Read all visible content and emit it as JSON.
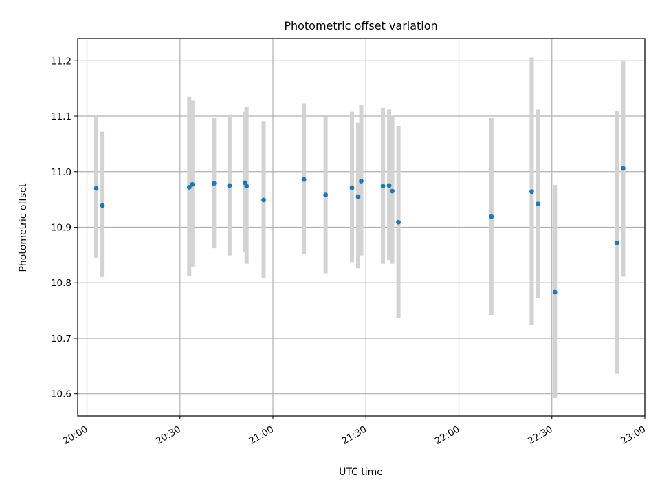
{
  "chart_data": {
    "type": "scatter",
    "title": "Photometric offset variation",
    "xlabel": "UTC time",
    "ylabel": "Photometric offset",
    "x_axis_kind": "time (HH:MM, UTC)",
    "xlim": [
      "19:57",
      "23:00"
    ],
    "ylim": [
      10.56,
      11.24
    ],
    "x_ticks": [
      "20:00",
      "20:30",
      "21:00",
      "21:30",
      "22:00",
      "22:30",
      "23:00"
    ],
    "y_ticks": [
      10.6,
      10.7,
      10.8,
      10.9,
      11.0,
      11.1,
      11.2
    ],
    "grid": true,
    "legend": "none",
    "colors": {
      "point": "#1f77b4",
      "errorbar": "#d3d3d3",
      "grid": "#b0b0b0"
    },
    "series": [
      {
        "points": [
          {
            "x": "20:03",
            "y": 10.97,
            "ylow": 10.845,
            "yhigh": 11.1
          },
          {
            "x": "20:05",
            "y": 10.939,
            "ylow": 10.81,
            "yhigh": 11.072
          },
          {
            "x": "20:33",
            "y": 10.972,
            "ylow": 10.812,
            "yhigh": 11.135
          },
          {
            "x": "20:34",
            "y": 10.977,
            "ylow": 10.829,
            "yhigh": 11.128
          },
          {
            "x": "20:41",
            "y": 10.979,
            "ylow": 10.862,
            "yhigh": 11.097
          },
          {
            "x": "20:46",
            "y": 10.975,
            "ylow": 10.849,
            "yhigh": 11.103
          },
          {
            "x": "20:51",
            "y": 10.98,
            "ylow": 10.855,
            "yhigh": 11.108
          },
          {
            "x": "20:51.5",
            "y": 10.974,
            "ylow": 10.834,
            "yhigh": 11.117
          },
          {
            "x": "20:57",
            "y": 10.949,
            "ylow": 10.809,
            "yhigh": 11.091
          },
          {
            "x": "21:10",
            "y": 10.986,
            "ylow": 10.851,
            "yhigh": 11.123
          },
          {
            "x": "21:17",
            "y": 10.958,
            "ylow": 10.817,
            "yhigh": 11.099
          },
          {
            "x": "21:25.5",
            "y": 10.971,
            "ylow": 10.837,
            "yhigh": 11.108
          },
          {
            "x": "21:27.5",
            "y": 10.955,
            "ylow": 10.826,
            "yhigh": 11.088
          },
          {
            "x": "21:28.5",
            "y": 10.983,
            "ylow": 10.849,
            "yhigh": 11.12
          },
          {
            "x": "21:35.5",
            "y": 10.974,
            "ylow": 10.834,
            "yhigh": 11.115
          },
          {
            "x": "21:37.5",
            "y": 10.975,
            "ylow": 10.841,
            "yhigh": 11.112
          },
          {
            "x": "21:38.5",
            "y": 10.965,
            "ylow": 10.834,
            "yhigh": 11.101
          },
          {
            "x": "21:40.5",
            "y": 10.909,
            "ylow": 10.737,
            "yhigh": 11.082
          },
          {
            "x": "22:10.5",
            "y": 10.919,
            "ylow": 10.742,
            "yhigh": 11.097
          },
          {
            "x": "22:23.5",
            "y": 10.964,
            "ylow": 10.724,
            "yhigh": 11.206
          },
          {
            "x": "22:25.5",
            "y": 10.942,
            "ylow": 10.773,
            "yhigh": 11.112
          },
          {
            "x": "22:31",
            "y": 10.783,
            "ylow": 10.592,
            "yhigh": 10.976
          },
          {
            "x": "22:51",
            "y": 10.872,
            "ylow": 10.636,
            "yhigh": 11.109
          },
          {
            "x": "22:53",
            "y": 11.006,
            "ylow": 10.811,
            "yhigh": 11.201
          }
        ]
      }
    ]
  }
}
